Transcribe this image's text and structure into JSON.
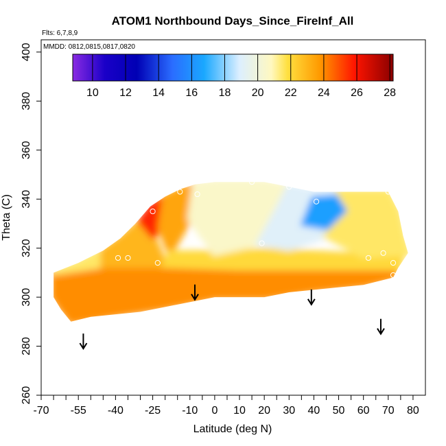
{
  "chart_data": {
    "type": "heatmap",
    "title": "ATOM1 Northbound Days_Since_FireInf_All",
    "flights_note": "Flts: 6,7,8,9",
    "dates_note": "MMDD: 0812,0815,0817,0820",
    "xlabel": "Latitude (deg N)",
    "ylabel": "Theta (C)",
    "xlim": [
      -70,
      85
    ],
    "ylim": [
      260,
      405
    ],
    "x_tick_labels": [
      "-70",
      "-55",
      "-40",
      "-25",
      "-10",
      "0",
      "10",
      "20",
      "30",
      "40",
      "50",
      "60",
      "70",
      "80"
    ],
    "y_tick_labels": [
      "260",
      "280",
      "300",
      "320",
      "340",
      "360",
      "380",
      "400"
    ],
    "colorbar": {
      "range": [
        8.8,
        28.2
      ],
      "tick_labels": [
        "10",
        "12",
        "14",
        "16",
        "18",
        "20",
        "22",
        "24",
        "26",
        "28"
      ]
    },
    "field_outline": [
      [
        -65,
        310
      ],
      [
        -55,
        314
      ],
      [
        -45,
        319
      ],
      [
        -38,
        324
      ],
      [
        -32,
        330
      ],
      [
        -26,
        337
      ],
      [
        -20,
        341
      ],
      [
        -14,
        344
      ],
      [
        -8,
        346
      ],
      [
        0,
        347
      ],
      [
        10,
        347
      ],
      [
        20,
        347
      ],
      [
        30,
        345
      ],
      [
        40,
        343
      ],
      [
        50,
        343
      ],
      [
        60,
        343
      ],
      [
        70,
        343
      ],
      [
        74,
        335
      ],
      [
        76,
        325
      ],
      [
        78,
        318
      ],
      [
        74,
        312
      ],
      [
        72,
        308
      ],
      [
        60,
        305
      ],
      [
        50,
        304
      ],
      [
        40,
        303
      ],
      [
        30,
        302
      ],
      [
        20,
        300
      ],
      [
        10,
        300
      ],
      [
        0,
        300
      ],
      [
        -10,
        298
      ],
      [
        -20,
        296
      ],
      [
        -30,
        294
      ],
      [
        -40,
        293
      ],
      [
        -50,
        292
      ],
      [
        -58,
        290
      ],
      [
        -62,
        295
      ],
      [
        -65,
        300
      ]
    ],
    "field_regions": [
      {
        "value": 24.0,
        "polygon": [
          [
            -65,
            300
          ],
          [
            -58,
            290
          ],
          [
            -40,
            293
          ],
          [
            -20,
            296
          ],
          [
            0,
            300
          ],
          [
            20,
            300
          ],
          [
            40,
            303
          ],
          [
            60,
            305
          ],
          [
            72,
            308
          ],
          [
            74,
            312
          ],
          [
            40,
            312
          ],
          [
            10,
            312
          ],
          [
            -20,
            313
          ],
          [
            -45,
            313
          ],
          [
            -65,
            310
          ]
        ]
      },
      {
        "value": 21.5,
        "polygon": [
          [
            -65,
            310
          ],
          [
            -45,
            313
          ],
          [
            -38,
            316
          ],
          [
            -45,
            319
          ],
          [
            -55,
            314
          ]
        ]
      },
      {
        "value": 23.0,
        "polygon": [
          [
            -45,
            313
          ],
          [
            -20,
            313
          ],
          [
            -25,
            325
          ],
          [
            -30,
            331
          ],
          [
            -38,
            324
          ],
          [
            -45,
            319
          ]
        ]
      },
      {
        "value": 25.5,
        "polygon": [
          [
            -30,
            331
          ],
          [
            -26,
            337
          ],
          [
            -20,
            341
          ],
          [
            -22,
            328
          ],
          [
            -25,
            325
          ]
        ]
      },
      {
        "value": 23.5,
        "polygon": [
          [
            -20,
            341
          ],
          [
            -14,
            344
          ],
          [
            -8,
            346
          ],
          [
            -10,
            332
          ],
          [
            -18,
            318
          ],
          [
            -22,
            328
          ]
        ]
      },
      {
        "value": 22.0,
        "polygon": [
          [
            -18,
            318
          ],
          [
            -20,
            313
          ],
          [
            10,
            312
          ],
          [
            40,
            312
          ],
          [
            74,
            312
          ],
          [
            76,
            318
          ],
          [
            60,
            317
          ],
          [
            40,
            318
          ],
          [
            20,
            319
          ],
          [
            0,
            318
          ]
        ]
      },
      {
        "value": 20.5,
        "polygon": [
          [
            -8,
            346
          ],
          [
            0,
            347
          ],
          [
            10,
            347
          ],
          [
            20,
            347
          ],
          [
            30,
            345
          ],
          [
            25,
            335
          ],
          [
            18,
            322
          ],
          [
            0,
            318
          ],
          [
            -10,
            332
          ]
        ]
      },
      {
        "value": 19.0,
        "polygon": [
          [
            30,
            345
          ],
          [
            40,
            343
          ],
          [
            50,
            343
          ],
          [
            55,
            335
          ],
          [
            45,
            325
          ],
          [
            30,
            320
          ],
          [
            18,
            322
          ],
          [
            25,
            335
          ]
        ]
      },
      {
        "value": 16.5,
        "polygon": [
          [
            40,
            340
          ],
          [
            52,
            341
          ],
          [
            55,
            335
          ],
          [
            48,
            328
          ],
          [
            36,
            330
          ]
        ]
      },
      {
        "value": 21.5,
        "polygon": [
          [
            50,
            343
          ],
          [
            60,
            343
          ],
          [
            70,
            343
          ],
          [
            74,
            335
          ],
          [
            76,
            325
          ],
          [
            78,
            318
          ],
          [
            76,
            318
          ],
          [
            60,
            317
          ],
          [
            45,
            325
          ],
          [
            55,
            335
          ]
        ]
      }
    ],
    "sample_points": [
      [
        -14,
        343
      ],
      [
        -25,
        335
      ],
      [
        -7,
        342
      ],
      [
        15,
        347
      ],
      [
        30,
        345
      ],
      [
        41,
        339
      ],
      [
        70,
        343
      ],
      [
        -39,
        316
      ],
      [
        -35,
        316
      ],
      [
        -23,
        314
      ],
      [
        19,
        322
      ],
      [
        62,
        316
      ],
      [
        68,
        318
      ],
      [
        72,
        314
      ],
      [
        72,
        309
      ]
    ],
    "arrows": [
      {
        "lat": -53,
        "theta": 279
      },
      {
        "lat": -8,
        "theta": 299
      },
      {
        "lat": 39,
        "theta": 297
      },
      {
        "lat": 67,
        "theta": 285
      }
    ]
  }
}
